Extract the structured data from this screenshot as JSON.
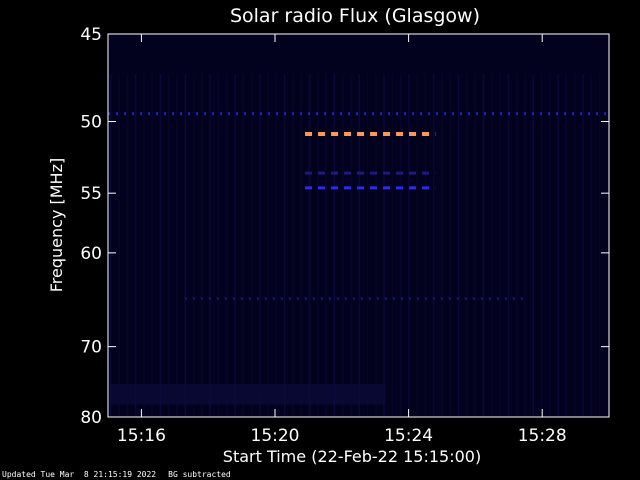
{
  "chart_data": {
    "type": "heatmap",
    "title": "Solar radio Flux (Glasgow)",
    "xlabel": "Start Time (22-Feb-22 15:15:00)",
    "ylabel": "Frequency [MHz]",
    "x_ticks": [
      "15:16",
      "15:20",
      "15:24",
      "15:28"
    ],
    "x_tick_minutes": [
      1,
      5,
      9,
      13
    ],
    "xlim_minutes": [
      0,
      15
    ],
    "y_ticks": [
      45,
      50,
      55,
      60,
      70,
      80
    ],
    "ylim": [
      45,
      80
    ],
    "y_scale": "reciprocal",
    "grid": false,
    "features": [
      {
        "kind": "dashed-band",
        "color": "#ff9955",
        "freq": 50.8,
        "x_start_minutes": 5.9,
        "x_end_minutes": 9.8
      },
      {
        "kind": "dashed-band",
        "color": "#2a2aff",
        "freq": 54.6,
        "x_start_minutes": 5.9,
        "x_end_minutes": 9.8
      },
      {
        "kind": "dashed-band",
        "color": "#1a1a8a",
        "freq": 53.5,
        "x_start_minutes": 5.9,
        "x_end_minutes": 9.8
      },
      {
        "kind": "dashed-band",
        "color": "#2020c0",
        "freq": 49.5,
        "x_start_minutes": 0,
        "x_end_minutes": 15
      },
      {
        "kind": "dashed-band",
        "color": "#151570",
        "freq": 64.5,
        "x_start_minutes": 2.3,
        "x_end_minutes": 12.5
      }
    ]
  },
  "footer": {
    "updated": "Updated Tue Mar  8 21:15:19 2022",
    "bg": "BG subtracted"
  }
}
